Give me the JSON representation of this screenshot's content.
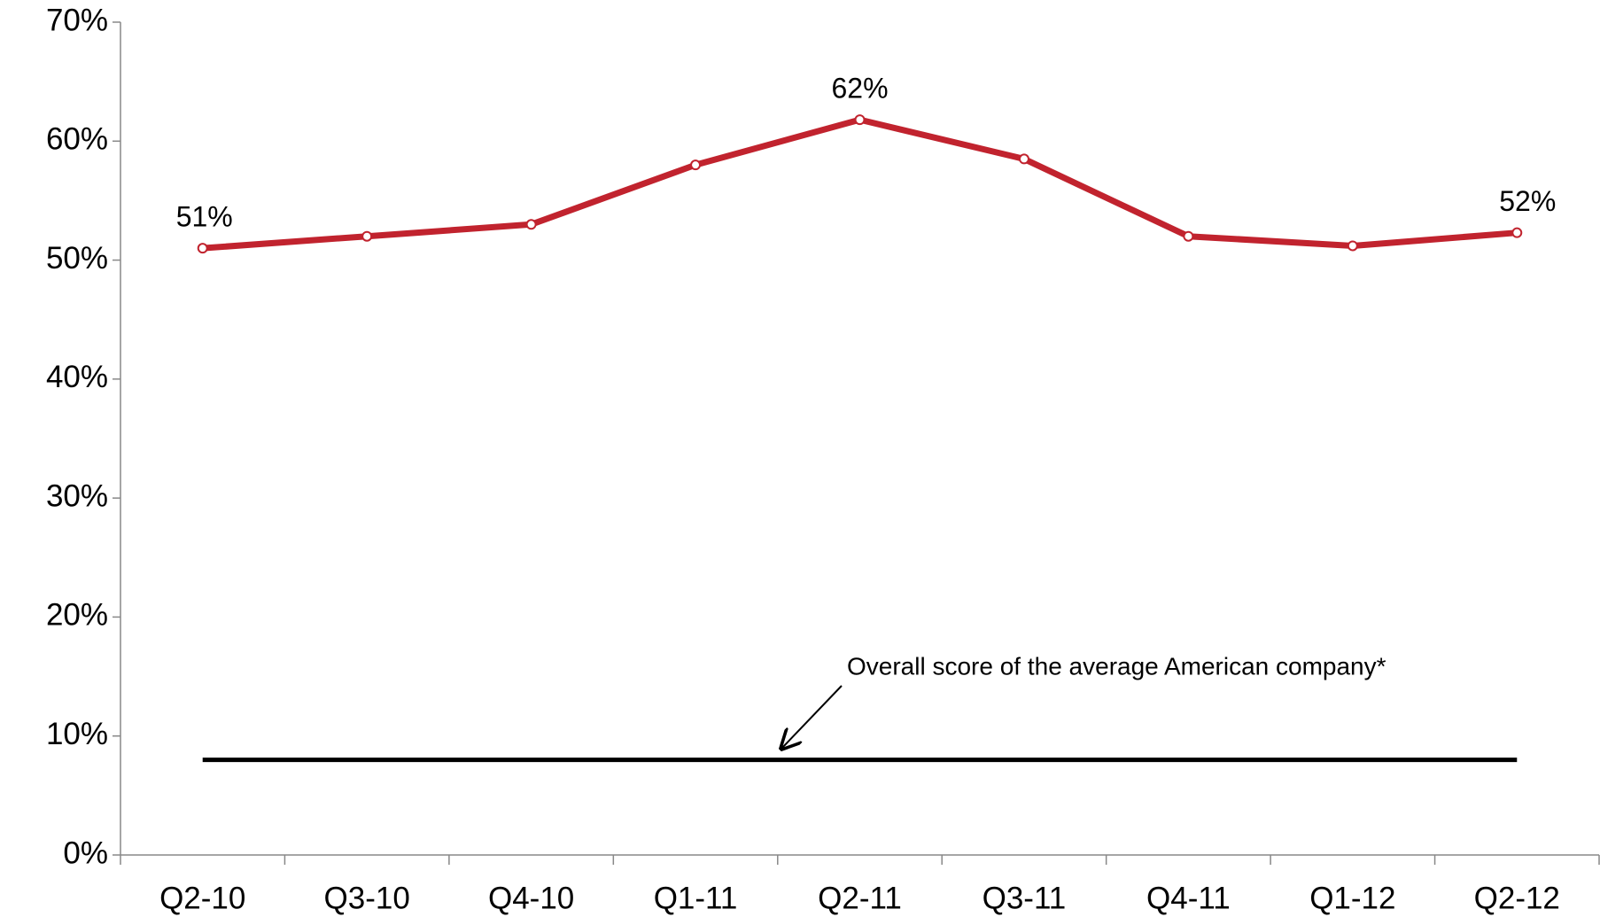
{
  "chart_data": {
    "type": "line",
    "categories": [
      "Q2-10",
      "Q3-10",
      "Q4-10",
      "Q1-11",
      "Q2-11",
      "Q3-11",
      "Q4-11",
      "Q1-12",
      "Q2-12"
    ],
    "series": [
      {
        "color": "#c1232e",
        "values": [
          51,
          52,
          53,
          58,
          61.8,
          58.5,
          52,
          51.2,
          52.3
        ],
        "value_labels": [
          "51%",
          null,
          null,
          null,
          "62%",
          null,
          null,
          null,
          "52%"
        ]
      },
      {
        "color": "#000000",
        "values": [
          8,
          8,
          8,
          8,
          8,
          8,
          8,
          8,
          8
        ]
      }
    ],
    "annotation": "Overall score of the average American company*",
    "ylim": [
      0,
      70
    ],
    "yticks": [
      {
        "value": 0,
        "label": "0%"
      },
      {
        "value": 10,
        "label": "10%"
      },
      {
        "value": 20,
        "label": "20%"
      },
      {
        "value": 30,
        "label": "30%"
      },
      {
        "value": 40,
        "label": "40%"
      },
      {
        "value": 50,
        "label": "50%"
      },
      {
        "value": 60,
        "label": "60%"
      },
      {
        "value": 70,
        "label": "70%"
      }
    ]
  }
}
